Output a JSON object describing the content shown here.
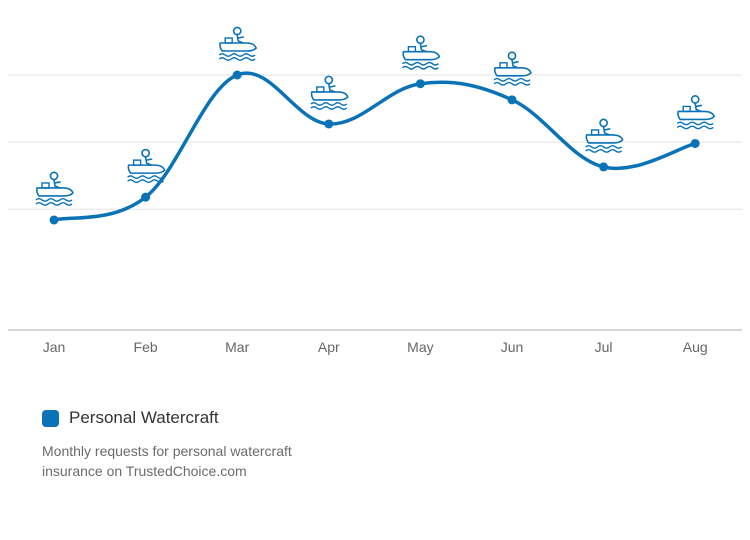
{
  "colors": {
    "line": "#0a72b7",
    "grid": "#e3e3e3",
    "axis": "#bdbdbd",
    "icon": "#0a72b7"
  },
  "legend": {
    "label": "Personal Watercraft",
    "icon": "jet-ski-icon"
  },
  "caption": "Monthly requests for personal watercraft insurance on TrustedChoice.com",
  "chart_data": {
    "type": "line",
    "categories": [
      "Jan",
      "Feb",
      "Mar",
      "Apr",
      "May",
      "Jun",
      "Jul",
      "Aug"
    ],
    "series": [
      {
        "name": "Personal Watercraft",
        "values": [
          0.84,
          1.18,
          3.0,
          2.27,
          2.87,
          2.63,
          1.63,
          1.98
        ]
      }
    ],
    "ylim": [
      -0.8,
      3.0
    ],
    "gridlines": [
      1.0,
      2.0,
      3.0
    ],
    "grid": true,
    "legend_position": "bottom-left",
    "marker_icon": "jet-ski-icon",
    "title": "",
    "xlabel": "",
    "ylabel": ""
  }
}
